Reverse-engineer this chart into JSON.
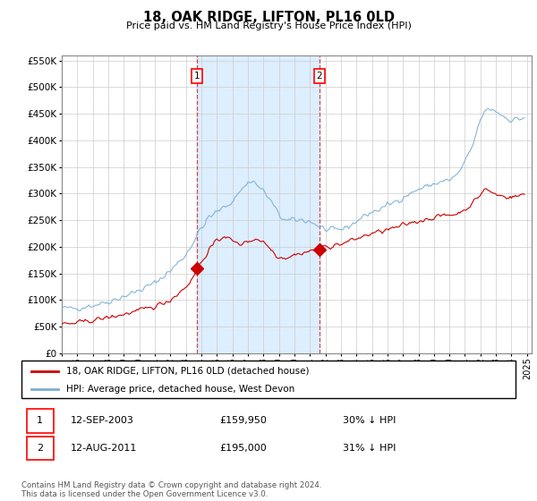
{
  "title": "18, OAK RIDGE, LIFTON, PL16 0LD",
  "subtitle": "Price paid vs. HM Land Registry's House Price Index (HPI)",
  "xlim_start": 1995.0,
  "xlim_end": 2025.3,
  "ylim_min": 0,
  "ylim_max": 560000,
  "yticks": [
    0,
    50000,
    100000,
    150000,
    200000,
    250000,
    300000,
    350000,
    400000,
    450000,
    500000,
    550000
  ],
  "ytick_labels": [
    "£0",
    "£50K",
    "£100K",
    "£150K",
    "£200K",
    "£250K",
    "£300K",
    "£350K",
    "£400K",
    "£450K",
    "£500K",
    "£550K"
  ],
  "xticks": [
    1995,
    1996,
    1997,
    1998,
    1999,
    2000,
    2001,
    2002,
    2003,
    2004,
    2005,
    2006,
    2007,
    2008,
    2009,
    2010,
    2011,
    2012,
    2013,
    2014,
    2015,
    2016,
    2017,
    2018,
    2019,
    2020,
    2021,
    2022,
    2023,
    2024,
    2025
  ],
  "sale1_x": 2003.71,
  "sale1_y": 159950,
  "sale1_label": "1",
  "sale1_date": "12-SEP-2003",
  "sale1_price": "£159,950",
  "sale1_hpi": "30% ↓ HPI",
  "sale2_x": 2011.62,
  "sale2_y": 195000,
  "sale2_label": "2",
  "sale2_date": "12-AUG-2011",
  "sale2_price": "£195,000",
  "sale2_hpi": "31% ↓ HPI",
  "vline_color": "#cc0000",
  "hpi_color": "#7aadd4",
  "price_color": "#cc0000",
  "shaded_color": "#ddeeff",
  "legend1_label": "18, OAK RIDGE, LIFTON, PL16 0LD (detached house)",
  "legend2_label": "HPI: Average price, detached house, West Devon",
  "footer": "Contains HM Land Registry data © Crown copyright and database right 2024.\nThis data is licensed under the Open Government Licence v3.0."
}
